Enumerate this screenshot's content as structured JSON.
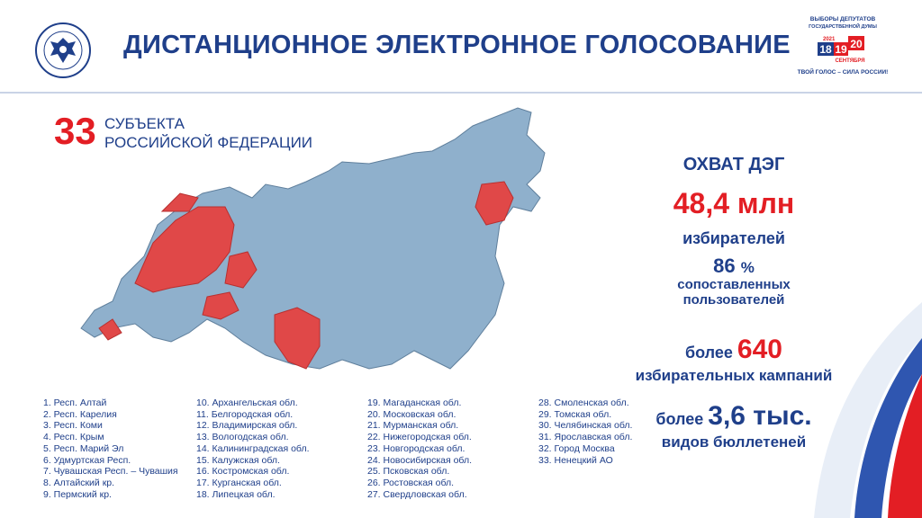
{
  "header": {
    "title": "ДИСТАНЦИОННОЕ ЭЛЕКТРОННОЕ ГОЛОСОВАНИЕ",
    "emblem_ring_text": "ЦЕНТРАЛЬНАЯ ИЗБИРАТЕЛЬНАЯ КОМИССИЯ РОССИЙСКОЙ ФЕДЕРАЦИИ",
    "election_logo": {
      "line1": "ВЫБОРЫ ДЕПУТАТОВ",
      "line2": "ГОСУДАРСТВЕННОЙ ДУМЫ",
      "year": "2021",
      "day1": "18",
      "day2": "19",
      "day3": "20",
      "month": "СЕНТЯБРЯ",
      "slogan": "ТВОЙ ГОЛОС – СИЛА РОССИИ!"
    }
  },
  "subjects": {
    "count": "33",
    "caption_line1": "СУБЪЕКТА",
    "caption_line2": "РОССИЙСКОЙ ФЕДЕРАЦИИ"
  },
  "stats": {
    "title": "ОХВАТ ДЭГ",
    "voters_value": "48,4 млн",
    "voters_label": "избирателей",
    "percent_value": "86",
    "percent_sign": "%",
    "percent_label_line1": "сопоставленных",
    "percent_label_line2": "пользователей",
    "campaigns_prefix": "более",
    "campaigns_value": "640",
    "campaigns_label": "избирательных кампаний",
    "ballots_prefix": "более",
    "ballots_value": "3,6 тыс.",
    "ballots_label": "видов бюллетеней"
  },
  "colors": {
    "brand_blue": "#1f3f8a",
    "accent_red": "#e31e24",
    "map_blue": "#8fb0cc",
    "map_red": "#e04848"
  },
  "regions": {
    "col1": [
      "1. Респ. Алтай",
      "2. Респ. Карелия",
      "3. Респ. Коми",
      "4. Респ. Крым",
      "5. Респ. Марий Эл",
      "6. Удмуртская Респ.",
      "7. Чувашская Респ. – Чувашия",
      "8. Алтайский кр.",
      "9. Пермский кр."
    ],
    "col2": [
      "10. Архангельская обл.",
      "11. Белгородская обл.",
      "12. Владимирская обл.",
      "13. Вологодская обл.",
      "14. Калининградская обл.",
      "15. Калужская обл.",
      "16. Костромская обл.",
      "17. Курганская обл.",
      "18. Липецкая обл."
    ],
    "col3": [
      "19. Магаданская обл.",
      "20. Московская обл.",
      "21. Мурманская обл.",
      "22. Нижегородская обл.",
      "23. Новгородская обл.",
      "24. Новосибирская обл.",
      "25. Псковская обл.",
      "26. Ростовская обл.",
      "27. Свердловская обл."
    ],
    "col4": [
      "28. Смоленская обл.",
      "29. Томская обл.",
      "30. Челябинская обл.",
      "31. Ярославская обл.",
      "32. Город Москва",
      "33. Ненецкий АО"
    ]
  }
}
